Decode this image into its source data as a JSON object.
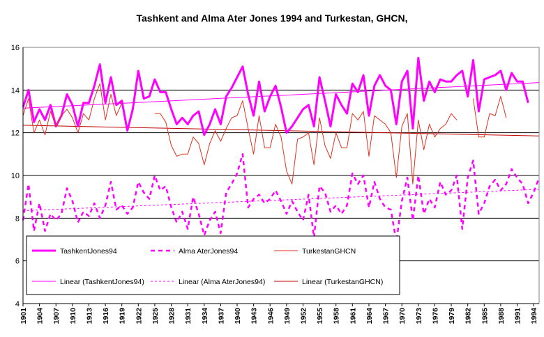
{
  "chart_data": {
    "type": "line",
    "title": "Tashkent and Alma Ater Jones 1994 and Turkestan, GHCN,",
    "xlabel": "",
    "ylabel": "",
    "ylim": [
      4,
      16
    ],
    "xlim": [
      1901,
      1995
    ],
    "yticks": [
      4,
      6,
      8,
      10,
      12,
      14,
      16
    ],
    "xticks": [
      1901,
      1904,
      1907,
      1910,
      1913,
      1916,
      1919,
      1922,
      1925,
      1928,
      1931,
      1934,
      1937,
      1940,
      1943,
      1946,
      1949,
      1952,
      1955,
      1958,
      1961,
      1964,
      1967,
      1970,
      1973,
      1976,
      1979,
      1982,
      1985,
      1988,
      1991,
      1994
    ],
    "grid": "horizontal",
    "legend_position": "bottom",
    "legend_layout": "3 columns x 2 rows",
    "series": [
      {
        "name": "TashkentJones94",
        "color": "#ff00ff",
        "style": "solid-thick",
        "start_year": 1901,
        "values": [
          13.2,
          14.0,
          12.5,
          13.1,
          12.6,
          13.3,
          12.3,
          12.8,
          13.8,
          13.3,
          12.3,
          13.4,
          13.4,
          14.2,
          15.2,
          13.4,
          14.6,
          13.3,
          13.5,
          12.1,
          13.1,
          14.9,
          13.6,
          13.7,
          14.5,
          13.9,
          13.9,
          13.1,
          12.4,
          12.7,
          12.4,
          12.8,
          13.0,
          11.9,
          12.4,
          13.1,
          12.4,
          13.7,
          14.1,
          14.6,
          15.1,
          13.8,
          12.8,
          14.4,
          13.0,
          13.7,
          14.2,
          13.2,
          12.0,
          12.3,
          12.7,
          13.1,
          13.3,
          12.3,
          14.6,
          13.5,
          12.3,
          13.8,
          13.3,
          12.9,
          14.3,
          13.9,
          14.7,
          12.8,
          14.2,
          14.7,
          14.2,
          14.0,
          12.4,
          14.4,
          14.9,
          12.2,
          15.5,
          13.5,
          14.4,
          13.9,
          14.5,
          14.4,
          14.4,
          14.7,
          14.9,
          13.7,
          15.4,
          13.0,
          14.5,
          14.6,
          14.7,
          14.9,
          14.0,
          14.8,
          14.4,
          14.4,
          13.4
        ]
      },
      {
        "name": "Alma AterJones94",
        "color": "#ff00ff",
        "style": "dashed",
        "start_year": 1901,
        "values": [
          7.9,
          9.6,
          7.4,
          8.7,
          7.4,
          8.2,
          7.9,
          8.2,
          9.4,
          8.8,
          7.8,
          8.3,
          8.1,
          8.7,
          8.0,
          8.6,
          9.7,
          8.4,
          8.6,
          8.2,
          8.5,
          9.7,
          9.2,
          8.9,
          10.0,
          9.3,
          9.5,
          8.5,
          7.8,
          8.3,
          7.5,
          9.0,
          8.2,
          7.2,
          7.9,
          8.3,
          7.3,
          9.2,
          9.6,
          10.1,
          11.0,
          8.5,
          8.9,
          9.1,
          8.7,
          8.9,
          9.3,
          8.8,
          8.2,
          8.8,
          8.3,
          7.9,
          9.1,
          7.1,
          9.5,
          9.2,
          8.3,
          8.6,
          8.2,
          8.6,
          10.1,
          9.6,
          10.0,
          8.5,
          9.7,
          8.9,
          8.5,
          8.4,
          6.9,
          8.8,
          9.9,
          7.9,
          10.0,
          8.2,
          8.9,
          8.5,
          9.7,
          9.1,
          9.3,
          10.0,
          7.5,
          9.9,
          10.7,
          8.2,
          8.7,
          9.5,
          9.8,
          9.3,
          9.6,
          10.3,
          9.9,
          9.6,
          8.7,
          9.2,
          9.9
        ]
      },
      {
        "name": "TurkestanGHCN",
        "color": "#e0301e",
        "style": "solid-thin",
        "start_year": 1901,
        "values": [
          12.8,
          13.6,
          12.0,
          12.6,
          11.9,
          13.0,
          12.3,
          12.8,
          13.1,
          12.7,
          12.0,
          12.9,
          12.6,
          13.6,
          14.3,
          12.6,
          13.8,
          12.8,
          13.4,
          null,
          null,
          null,
          null,
          null,
          12.9,
          12.9,
          12.5,
          11.4,
          10.9,
          11.0,
          11.0,
          11.8,
          11.5,
          10.5,
          11.5,
          12.1,
          11.6,
          12.2,
          12.7,
          12.8,
          13.5,
          12.2,
          11.0,
          12.8,
          11.3,
          11.3,
          12.4,
          11.8,
          10.2,
          9.6,
          11.7,
          11.8,
          12.0,
          10.5,
          12.7,
          11.4,
          10.8,
          12.0,
          11.3,
          11.3,
          12.9,
          12.6,
          13.0,
          10.9,
          12.8,
          12.6,
          12.4,
          12.0,
          9.9,
          12.3,
          12.9,
          9.6,
          12.6,
          11.2,
          12.4,
          11.8,
          12.2,
          12.4,
          12.9,
          12.6,
          null,
          null,
          13.6,
          11.8,
          11.8,
          12.9,
          12.8,
          13.7,
          12.7
        ]
      }
    ],
    "trendlines": [
      {
        "name": "Linear (TashkentJones94)",
        "color": "#ff00ff",
        "style": "solid-thin",
        "x": [
          1901,
          1995
        ],
        "y": [
          13.15,
          14.35
        ]
      },
      {
        "name": "Linear (Alma AterJones94)",
        "color": "#ff00ff",
        "style": "dashed-thin",
        "x": [
          1901,
          1995
        ],
        "y": [
          8.35,
          9.35
        ]
      },
      {
        "name": "Linear (TurkestanGHCN)",
        "color": "#c00000",
        "style": "solid-thin",
        "x": [
          1901,
          1995
        ],
        "y": [
          12.35,
          11.85
        ]
      }
    ]
  }
}
